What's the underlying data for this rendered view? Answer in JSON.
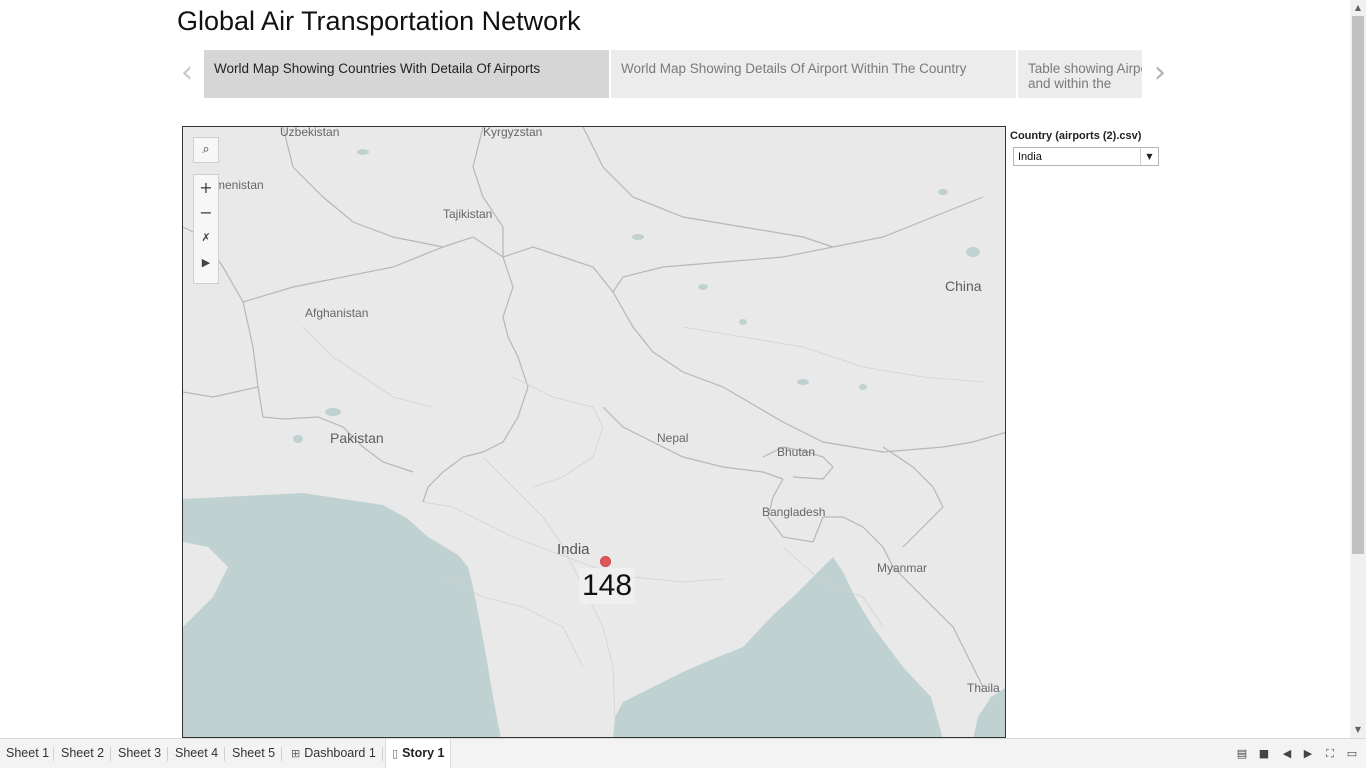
{
  "story": {
    "title": "Global Air Transportation Network",
    "points": [
      {
        "label": "World Map Showing Countries With Detaila Of Airports",
        "active": true
      },
      {
        "label": "World Map Showing Details Of Airport Within The Country",
        "active": false
      },
      {
        "label": "Table showing Airpo world and within the",
        "active": false
      }
    ],
    "prev_icon": "chevron-left-icon",
    "next_icon": "chevron-right-icon"
  },
  "map": {
    "labels": {
      "uzbekistan": "Uzbekistan",
      "kyrgyzstan": "Kyrgyzstan",
      "turkmenistan": "menistan",
      "tajikistan": "Tajikistan",
      "afghanistan": "Afghanistan",
      "china": "China",
      "pakistan": "Pakistan",
      "nepal": "Nepal",
      "bhutan": "Bhutan",
      "bangladesh": "Bangladesh",
      "india": "India",
      "myanmar": "Myanmar",
      "thailand": "Thaila"
    },
    "airport_count": "148",
    "marker_color": "#e05656",
    "land_color": "#e9e9e9",
    "water_color": "#c0d1d1",
    "tools": {
      "search_icon": "search-icon",
      "zoom_in": "+",
      "zoom_out": "−",
      "pin_icon": "unpin-icon",
      "expand_icon": "play-icon"
    }
  },
  "filter": {
    "title": "Country (airports (2).csv)",
    "value": "India"
  },
  "tabs": [
    {
      "label": "Sheet 1",
      "icon": ""
    },
    {
      "label": "Sheet 2",
      "icon": ""
    },
    {
      "label": "Sheet 3",
      "icon": ""
    },
    {
      "label": "Sheet 4",
      "icon": ""
    },
    {
      "label": "Sheet 5",
      "icon": ""
    },
    {
      "label": "Dashboard 1",
      "icon": "dashboard-icon"
    },
    {
      "label": "Story 1",
      "icon": "story-icon",
      "active": true
    }
  ]
}
